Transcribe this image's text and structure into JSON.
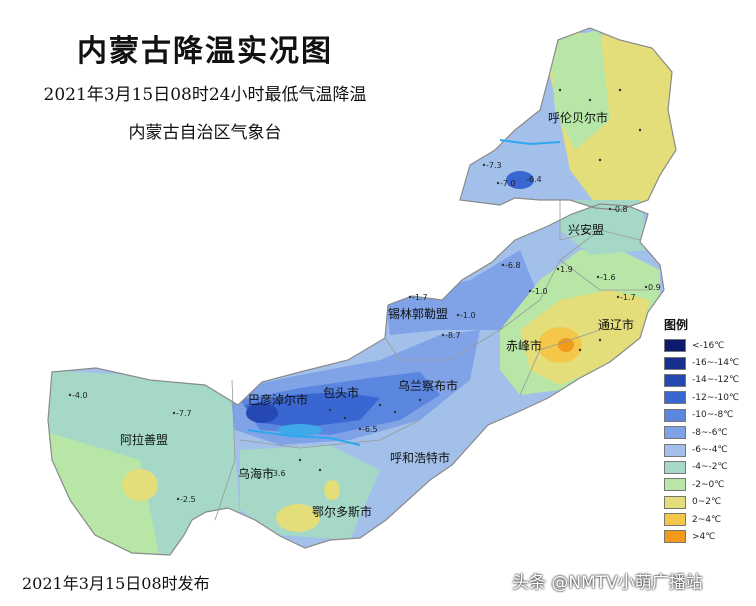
{
  "header": {
    "title": "内蒙古降温实况图",
    "subtitle": "2021年3月15日08时24小时最低气温降温",
    "agency": "内蒙古自治区气象台"
  },
  "footer": {
    "issued": "2021年3月15日08时发布",
    "watermark": "头条 @NMTV小萌广播站"
  },
  "regions": {
    "hulunbuir": "呼伦贝尔市",
    "xinganmeng": "兴安盟",
    "tongliao": "通辽市",
    "chifeng": "赤峰市",
    "xilingol": "锡林郭勒盟",
    "ulanqab": "乌兰察布市",
    "baotou": "包头市",
    "bayannur": "巴彦淖尔市",
    "hohhot": "呼和浩特市",
    "alxa": "阿拉善盟",
    "wuhai": "乌海市",
    "ordos": "鄂尔多斯市"
  },
  "legend": {
    "title": "图例",
    "items": [
      {
        "label": "<-16℃",
        "color": "#0b1a6e"
      },
      {
        "label": "-16~-14℃",
        "color": "#17308f"
      },
      {
        "label": "-14~-12℃",
        "color": "#2548b3"
      },
      {
        "label": "-12~-10℃",
        "color": "#3a66d2"
      },
      {
        "label": "-10~-8℃",
        "color": "#5a86e0"
      },
      {
        "label": "-8~-6℃",
        "color": "#7fa3e6"
      },
      {
        "label": "-6~-4℃",
        "color": "#a3c0ea"
      },
      {
        "label": "-4~-2℃",
        "color": "#a6d8c8"
      },
      {
        "label": "-2~0℃",
        "color": "#b7e6a6"
      },
      {
        "label": "0~2℃",
        "color": "#e3dd7a"
      },
      {
        "label": "2~4℃",
        "color": "#f4c64a"
      },
      {
        "label": ">4℃",
        "color": "#f29a1c"
      }
    ]
  },
  "stations": [
    "-7.3",
    "-7.0",
    "-6.8",
    "-8.7",
    "-6.4",
    "-7.7",
    "-4.0",
    "-1.7",
    "-1.0",
    "-6.5",
    "-3.6",
    "1.9",
    "-1.6",
    "-1.7",
    "-0.8",
    "0.9",
    "-1.0",
    "-2.5"
  ]
}
